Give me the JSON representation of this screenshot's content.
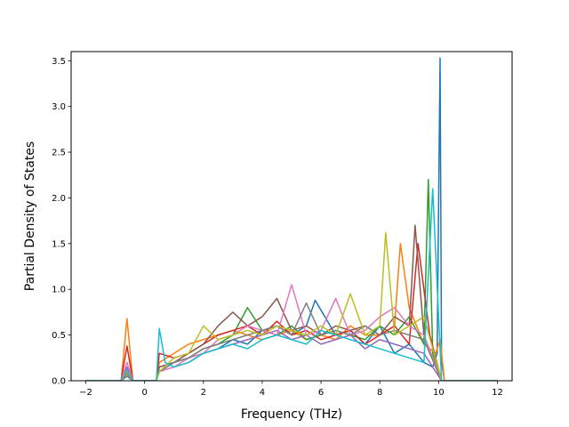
{
  "chart_data": {
    "type": "line",
    "title": "",
    "xlabel": "Frequency (THz)",
    "ylabel": "Partial Density of States",
    "xlim": [
      -2.5,
      12.5
    ],
    "ylim": [
      0.0,
      3.6
    ],
    "x_ticks": [
      -2,
      0,
      2,
      4,
      6,
      8,
      10,
      12
    ],
    "x_tick_labels": [
      "−2",
      "0",
      "2",
      "4",
      "6",
      "8",
      "10",
      "12"
    ],
    "y_ticks": [
      0.0,
      0.5,
      1.0,
      1.5,
      2.0,
      2.5,
      3.0,
      3.5
    ],
    "y_tick_labels": [
      "0.0",
      "0.5",
      "1.0",
      "1.5",
      "2.0",
      "2.5",
      "3.0",
      "3.5"
    ],
    "grid": false,
    "legend": "none",
    "colors": [
      "#1f77b4",
      "#ff7f0e",
      "#2ca02c",
      "#d62728",
      "#9467bd",
      "#8c564b",
      "#e377c2",
      "#7f7f7f",
      "#bcbd22",
      "#17becf"
    ],
    "series": [
      {
        "color": "#1f77b4",
        "x": [
          -2,
          -0.8,
          -0.6,
          -0.4,
          0.4,
          0.5,
          1,
          1.5,
          2,
          2.5,
          3,
          3.5,
          4,
          4.5,
          5,
          5.5,
          5.8,
          6.5,
          7,
          7.5,
          8,
          8.5,
          9,
          9.5,
          9.8,
          9.95,
          10.05,
          10.1,
          10.2,
          12
        ],
        "y": [
          0,
          0,
          0.05,
          0,
          0,
          0.15,
          0.2,
          0.25,
          0.3,
          0.35,
          0.45,
          0.4,
          0.55,
          0.6,
          0.5,
          0.6,
          0.88,
          0.5,
          0.55,
          0.4,
          0.6,
          0.3,
          0.4,
          0.2,
          0.15,
          0.3,
          3.53,
          0.2,
          0,
          0
        ]
      },
      {
        "color": "#ff7f0e",
        "x": [
          -2,
          -0.8,
          -0.6,
          -0.4,
          0.4,
          0.5,
          1,
          1.5,
          2,
          2.5,
          3,
          3.5,
          4,
          4.5,
          5,
          5.5,
          6,
          6.5,
          7,
          7.5,
          8,
          8.5,
          8.7,
          9,
          9.5,
          9.9,
          10.05,
          10.2,
          12
        ],
        "y": [
          0,
          0,
          0.68,
          0,
          0,
          0.2,
          0.3,
          0.4,
          0.45,
          0.5,
          0.55,
          0.5,
          0.45,
          0.5,
          0.55,
          0.45,
          0.5,
          0.45,
          0.6,
          0.5,
          0.5,
          0.6,
          1.5,
          0.8,
          0.4,
          0.3,
          0.45,
          0,
          0
        ]
      },
      {
        "color": "#2ca02c",
        "x": [
          -2,
          -0.8,
          -0.6,
          -0.4,
          0.4,
          0.5,
          1,
          1.5,
          2,
          2.5,
          3,
          3.5,
          4,
          4.5,
          5,
          5.5,
          6,
          6.5,
          7,
          7.5,
          8,
          8.5,
          9,
          9.5,
          9.65,
          9.8,
          10.1,
          12
        ],
        "y": [
          0,
          0,
          0.1,
          0,
          0,
          0.1,
          0.2,
          0.25,
          0.35,
          0.4,
          0.5,
          0.8,
          0.55,
          0.5,
          0.6,
          0.45,
          0.5,
          0.55,
          0.5,
          0.45,
          0.6,
          0.5,
          0.7,
          0.4,
          2.2,
          0.3,
          0,
          0
        ]
      },
      {
        "color": "#d62728",
        "x": [
          -2,
          -0.8,
          -0.6,
          -0.4,
          0.4,
          0.5,
          1,
          1.5,
          2,
          2.5,
          3,
          3.5,
          4,
          4.5,
          5,
          5.5,
          6,
          6.5,
          7,
          7.5,
          8,
          8.5,
          9,
          9.3,
          9.7,
          10.1,
          12
        ],
        "y": [
          0,
          0,
          0.38,
          0,
          0,
          0.3,
          0.25,
          0.3,
          0.4,
          0.5,
          0.55,
          0.6,
          0.5,
          0.65,
          0.5,
          0.55,
          0.45,
          0.5,
          0.55,
          0.4,
          0.5,
          0.6,
          0.4,
          1.5,
          0.5,
          0,
          0
        ]
      },
      {
        "color": "#9467bd",
        "x": [
          -2,
          -0.8,
          -0.6,
          -0.4,
          0.4,
          0.5,
          1,
          1.5,
          2,
          2.5,
          3,
          3.5,
          4,
          4.5,
          5,
          5.5,
          6,
          6.5,
          7,
          7.5,
          8,
          8.5,
          9,
          9.5,
          10.1,
          12
        ],
        "y": [
          0,
          0,
          0.15,
          0,
          0,
          0.1,
          0.15,
          0.2,
          0.3,
          0.35,
          0.4,
          0.45,
          0.5,
          0.55,
          0.45,
          0.5,
          0.4,
          0.45,
          0.5,
          0.35,
          0.45,
          0.4,
          0.35,
          0.3,
          0,
          0
        ]
      },
      {
        "color": "#8c564b",
        "x": [
          -2,
          -0.8,
          -0.6,
          -0.4,
          0.4,
          0.5,
          1,
          1.5,
          2,
          2.5,
          3,
          3.5,
          4,
          4.5,
          5,
          5.5,
          6,
          6.5,
          7,
          7.5,
          8,
          8.5,
          9,
          9.2,
          9.5,
          10.1,
          12
        ],
        "y": [
          0,
          0,
          0.08,
          0,
          0,
          0.15,
          0.2,
          0.3,
          0.4,
          0.6,
          0.75,
          0.6,
          0.7,
          0.9,
          0.55,
          0.6,
          0.5,
          0.6,
          0.55,
          0.6,
          0.5,
          0.7,
          0.6,
          1.7,
          0.5,
          0,
          0
        ]
      },
      {
        "color": "#e377c2",
        "x": [
          -2,
          -0.8,
          -0.6,
          -0.4,
          0.4,
          0.5,
          1,
          1.5,
          2,
          2.5,
          3,
          3.5,
          4,
          4.5,
          5,
          5.5,
          6,
          6.5,
          7,
          7.5,
          8,
          8.5,
          9,
          9.5,
          10.1,
          12
        ],
        "y": [
          0,
          0,
          0.2,
          0,
          0,
          0.1,
          0.15,
          0.25,
          0.3,
          0.45,
          0.5,
          0.6,
          0.55,
          0.5,
          1.05,
          0.5,
          0.55,
          0.9,
          0.5,
          0.55,
          0.7,
          0.8,
          0.6,
          0.5,
          0,
          0
        ]
      },
      {
        "color": "#7f7f7f",
        "x": [
          -2,
          -0.8,
          -0.6,
          -0.4,
          0.4,
          0.5,
          1,
          1.5,
          2,
          2.5,
          3,
          3.5,
          4,
          4.5,
          5,
          5.5,
          6,
          6.5,
          7,
          7.5,
          8,
          8.5,
          9,
          9.5,
          10.1,
          12
        ],
        "y": [
          0,
          0,
          0.05,
          0,
          0,
          0.1,
          0.2,
          0.25,
          0.35,
          0.4,
          0.45,
          0.5,
          0.55,
          0.6,
          0.5,
          0.85,
          0.5,
          0.55,
          0.5,
          0.6,
          0.5,
          0.55,
          0.5,
          0.45,
          0,
          0
        ]
      },
      {
        "color": "#bcbd22",
        "x": [
          -2,
          -0.8,
          -0.6,
          -0.4,
          0.4,
          0.5,
          1,
          1.5,
          2,
          2.5,
          3,
          3.5,
          4,
          4.5,
          5,
          5.5,
          6,
          6.5,
          7,
          7.5,
          8,
          8.2,
          8.5,
          9,
          9.5,
          10.1,
          12
        ],
        "y": [
          0,
          0,
          0.1,
          0,
          0,
          0.1,
          0.25,
          0.3,
          0.6,
          0.45,
          0.5,
          0.55,
          0.5,
          0.6,
          0.55,
          0.5,
          0.6,
          0.5,
          0.95,
          0.5,
          0.6,
          1.62,
          0.5,
          0.6,
          0.7,
          0,
          0
        ]
      },
      {
        "color": "#17becf",
        "x": [
          -2,
          -0.8,
          -0.6,
          -0.4,
          0.4,
          0.5,
          0.7,
          1,
          1.5,
          2,
          2.5,
          3,
          3.5,
          4,
          4.5,
          5,
          5.5,
          6,
          6.5,
          7,
          7.5,
          8,
          8.5,
          9,
          9.5,
          9.8,
          10.1,
          12
        ],
        "y": [
          0,
          0,
          0.12,
          0,
          0,
          0.57,
          0.2,
          0.15,
          0.2,
          0.3,
          0.35,
          0.4,
          0.35,
          0.45,
          0.5,
          0.45,
          0.4,
          0.55,
          0.5,
          0.45,
          0.4,
          0.35,
          0.3,
          0.25,
          0.2,
          2.1,
          0,
          0
        ]
      }
    ]
  }
}
